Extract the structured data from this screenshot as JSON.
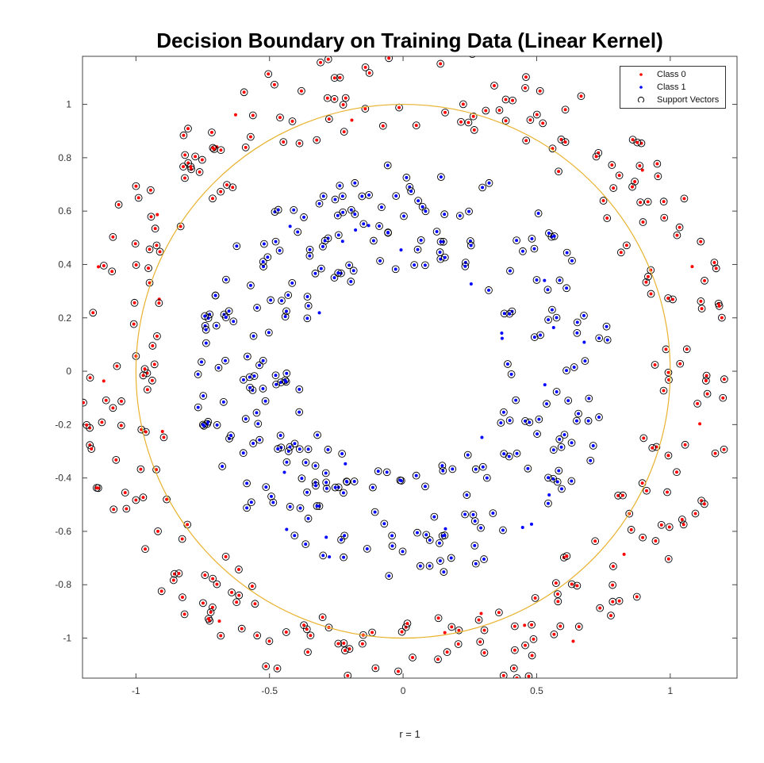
{
  "chart_data": {
    "type": "scatter",
    "title": "Decision Boundary on Training Data (Linear Kernel)",
    "xlabel": "r = 1",
    "ylabel": "",
    "xlim": [
      -1.2,
      1.25
    ],
    "ylim": [
      -1.15,
      1.18
    ],
    "xticks": [
      -1,
      -0.5,
      0,
      0.5,
      1
    ],
    "yticks": [
      -1,
      -0.8,
      -0.6,
      -0.4,
      -0.2,
      0,
      0.2,
      0.4,
      0.6,
      0.8,
      1
    ],
    "legend_position": "top-right",
    "grid": false,
    "series": [
      {
        "name": "Class 0",
        "color": "#ff0000",
        "marker": "dot",
        "distribution": "ring",
        "approx_radius_range": [
          0.92,
          1.24
        ],
        "approx_count": 330
      },
      {
        "name": "Class 1",
        "color": "#0000ff",
        "marker": "dot",
        "distribution": "ring",
        "approx_radius_range": [
          0.38,
          0.78
        ],
        "approx_count": 320
      },
      {
        "name": "Support Vectors",
        "color": "#000000",
        "marker": "open-circle",
        "note_fraction_of_points": 0.94
      }
    ],
    "decision_boundary": {
      "shape": "circle",
      "center": [
        0,
        0
      ],
      "radius": 1,
      "color": "#e8b22e"
    }
  }
}
